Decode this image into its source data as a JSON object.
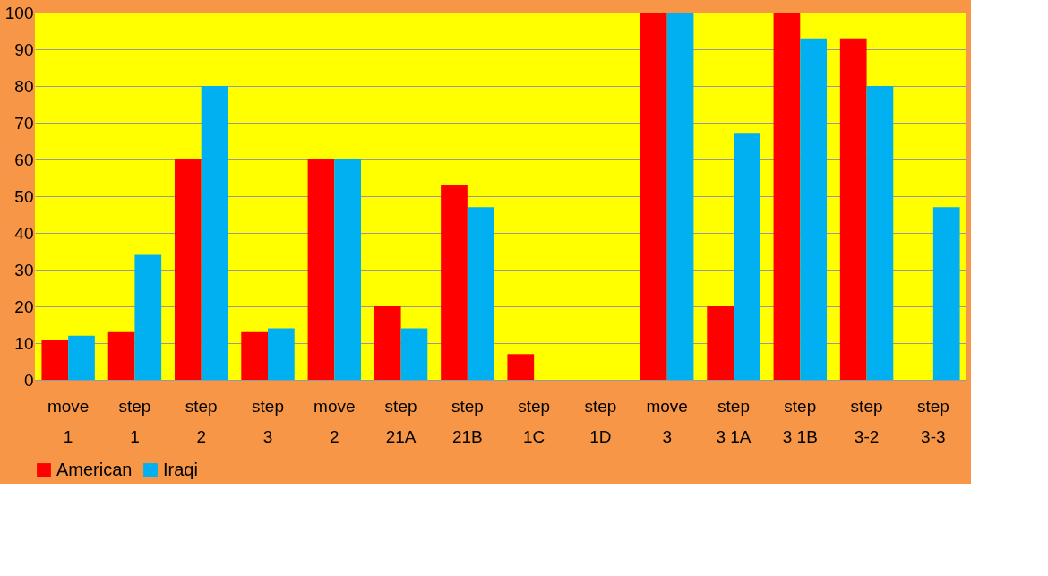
{
  "chart_data": {
    "type": "bar",
    "categories": [
      "move 1",
      "step 1",
      "step 2",
      "step 3",
      "move 2",
      "step 21A",
      "step 21B",
      "step 1C",
      "step 1D",
      "move 3",
      "step 3 1A",
      "step 3 1B",
      "step 3-2",
      "step 3-3"
    ],
    "series": [
      {
        "name": "American",
        "color": "#ff0000",
        "values": [
          11,
          13,
          60,
          13,
          60,
          20,
          53,
          7,
          null,
          100,
          20,
          100,
          93,
          null
        ]
      },
      {
        "name": "Iraqi",
        "color": "#00b0f0",
        "values": [
          12,
          34,
          80,
          14,
          60,
          14,
          47,
          null,
          null,
          100,
          67,
          93,
          80,
          47
        ]
      }
    ],
    "ylim": [
      0,
      100
    ],
    "yticks": [
      0,
      10,
      20,
      30,
      40,
      50,
      60,
      70,
      80,
      90,
      100
    ],
    "grid": "y",
    "legend": "bottom"
  }
}
